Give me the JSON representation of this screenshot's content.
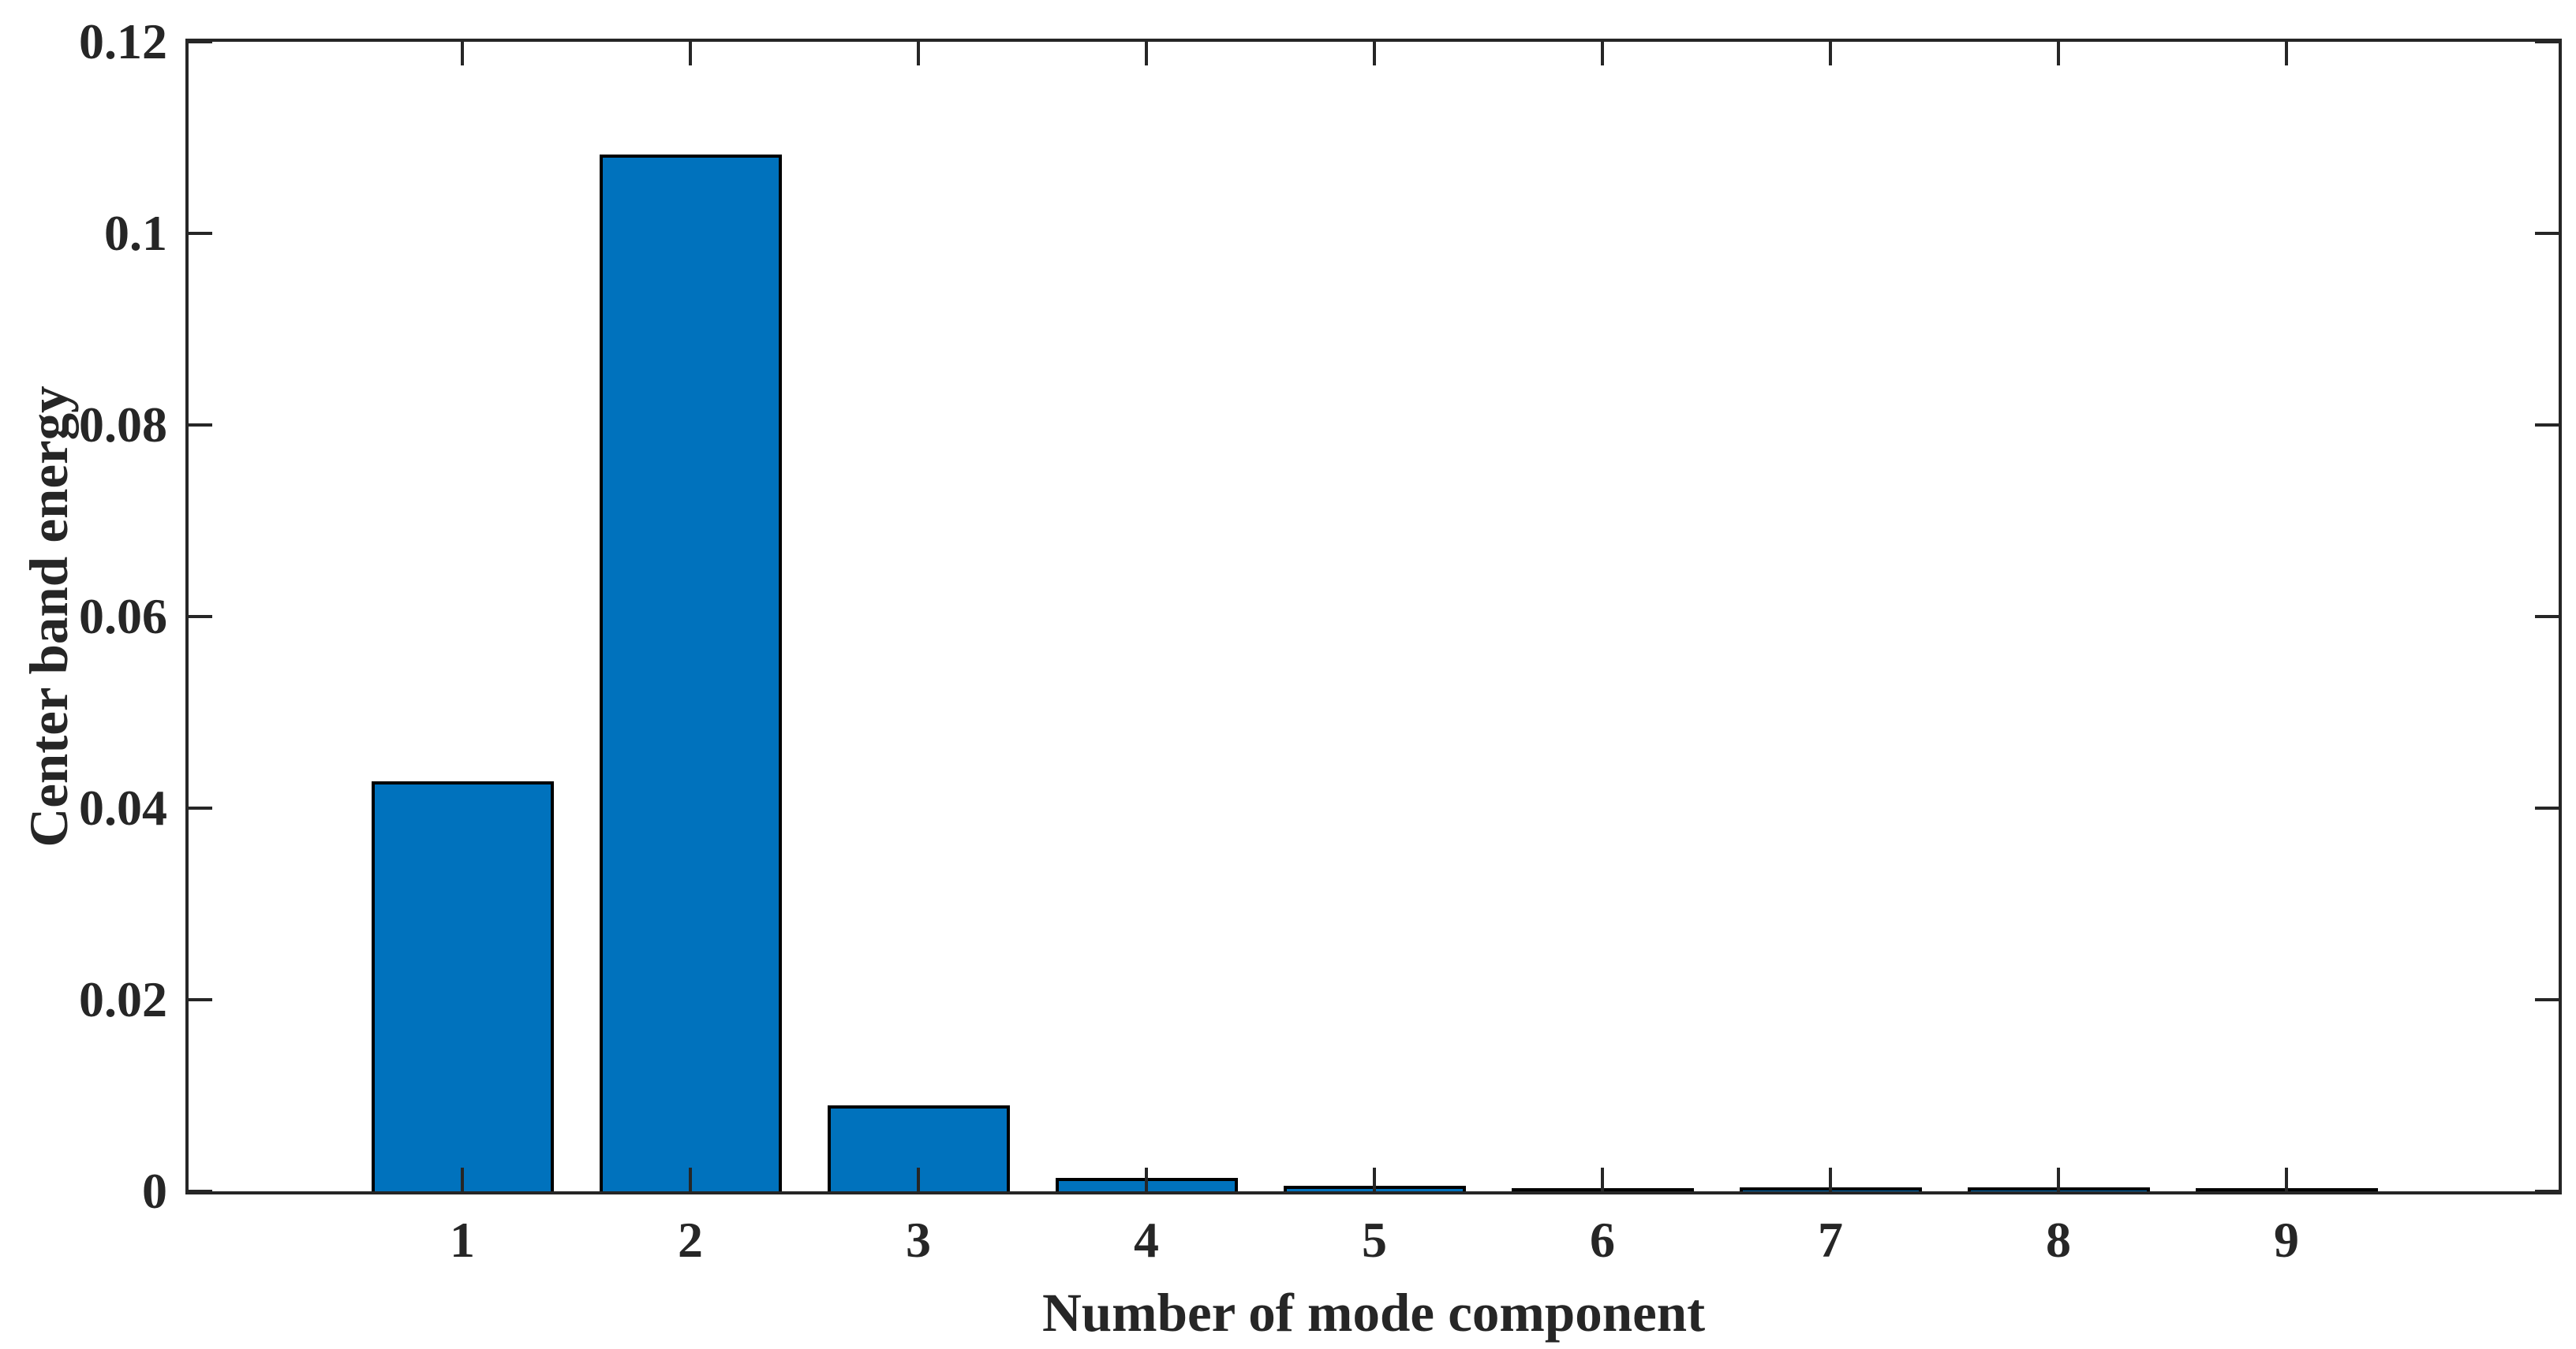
{
  "chart_data": {
    "type": "bar",
    "title": "",
    "xlabel": "Number of mode component",
    "ylabel": "Center band energy",
    "categories": [
      "1",
      "2",
      "3",
      "4",
      "5",
      "6",
      "7",
      "8",
      "9"
    ],
    "series": [
      {
        "name": "Center band energy",
        "values": [
          0.0428,
          0.1082,
          0.009,
          0.0014,
          0.0006,
          0.0002,
          0.0004,
          0.0004,
          0.0001
        ]
      }
    ],
    "ylim": [
      0,
      0.12
    ],
    "yticks": [
      {
        "label": "0",
        "value": 0
      },
      {
        "label": "0.02",
        "value": 0.02
      },
      {
        "label": "0.04",
        "value": 0.04
      },
      {
        "label": "0.06",
        "value": 0.06
      },
      {
        "label": "0.08",
        "value": 0.08
      },
      {
        "label": "0.1",
        "value": 0.1
      },
      {
        "label": "0.12",
        "value": 0.12
      }
    ],
    "grid": false,
    "legend_position": "none",
    "bar_width_fraction": 0.8,
    "colors": {
      "bar_fill": "#0072BD",
      "bar_edge": "#000000",
      "axis": "#262626",
      "text": "#262626",
      "background": "#ffffff"
    }
  }
}
